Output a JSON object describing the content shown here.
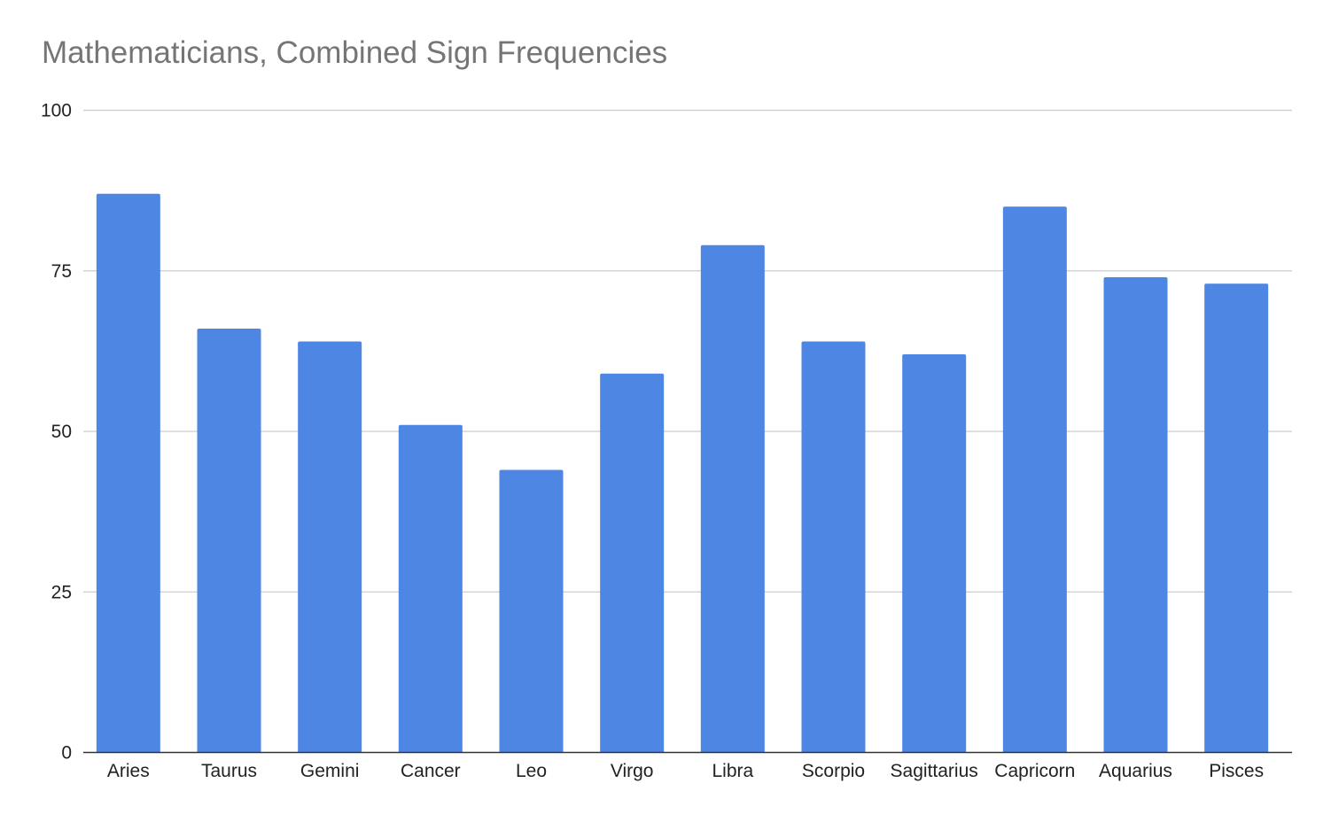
{
  "chart_data": {
    "type": "bar",
    "title": "Mathematicians, Combined Sign Frequencies",
    "xlabel": "",
    "ylabel": "",
    "categories": [
      "Aries",
      "Taurus",
      "Gemini",
      "Cancer",
      "Leo",
      "Virgo",
      "Libra",
      "Scorpio",
      "Sagittarius",
      "Capricorn",
      "Aquarius",
      "Pisces"
    ],
    "values": [
      87,
      66,
      64,
      51,
      44,
      59,
      79,
      64,
      62,
      85,
      74,
      73
    ],
    "ylim": [
      0,
      100
    ],
    "yticks": [
      "0",
      "25",
      "50",
      "75",
      "100"
    ],
    "grid": true,
    "legend": "none",
    "colors": {
      "bar": "#4e86e4",
      "grid": "#cccccc",
      "axis": "#333333",
      "title": "#757575"
    }
  }
}
